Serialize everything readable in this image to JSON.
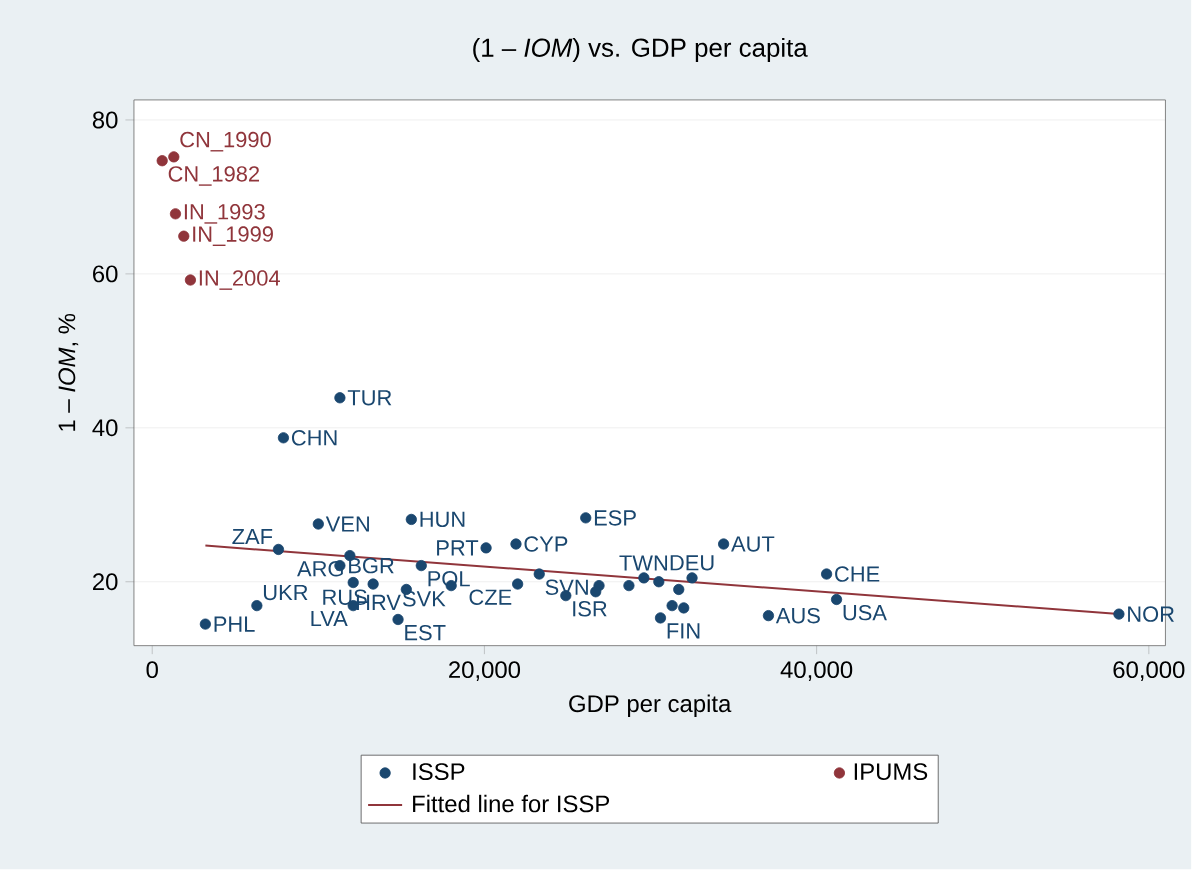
{
  "chart_data": {
    "type": "scatter",
    "title": "(1 – *IOM*) vs. GDP per capita",
    "xlabel": "GDP per capita",
    "ylabel": "1 – *IOM*, %",
    "xlim": [
      -1100,
      61000
    ],
    "ylim": [
      11.7,
      82.6
    ],
    "xticks": [
      0,
      {
        "value": 20000,
        "label": "20,000"
      },
      {
        "value": 40000,
        "label": "40,000"
      },
      {
        "value": 60000,
        "label": "60,000"
      }
    ],
    "yticks": [
      20,
      40,
      60,
      80
    ],
    "grid": "y",
    "legend": "bottom",
    "series": [
      {
        "name": "ISSP",
        "marker": "circle",
        "color": "#1a476f",
        "x": [
          11300,
          7900,
          10000,
          15600,
          7600,
          11900,
          11300,
          16200,
          20100,
          21900,
          26100,
          34400,
          23300,
          22000,
          18000,
          15300,
          13300,
          12100,
          12100,
          14800,
          6300,
          3200,
          24900,
          40600,
          41200,
          58200,
          37100,
          26900,
          26700,
          28700,
          29600,
          30500,
          32500,
          31700,
          31300,
          32000,
          30600
        ],
        "values": [
          43.9,
          38.7,
          27.5,
          28.1,
          24.2,
          23.4,
          22.1,
          22.1,
          24.4,
          24.9,
          28.3,
          24.9,
          21.0,
          19.7,
          19.5,
          19.0,
          19.7,
          19.9,
          16.9,
          15.1,
          16.9,
          14.5,
          18.2,
          21.0,
          17.7,
          15.8,
          15.6,
          19.5,
          18.7,
          19.5,
          20.5,
          20.0,
          20.5,
          19.0,
          16.9,
          16.6,
          15.3
        ]
      },
      {
        "name": "IPUMS",
        "marker": "circle",
        "color": "#90353b",
        "x": [
          600,
          1300,
          1400,
          1900,
          2300
        ],
        "values": [
          74.7,
          75.2,
          67.8,
          64.9,
          59.2
        ]
      },
      {
        "name": "Fitted line for ISSP",
        "type": "line",
        "color": "#90353b",
        "line_style": "solid",
        "marker": "none",
        "x": [
          3200,
          58200
        ],
        "values": [
          24.7,
          15.8
        ]
      }
    ],
    "annotations": [
      {
        "text": "TUR",
        "x": 11300,
        "y": 43.9
      },
      {
        "text": "CHN",
        "x": 7900,
        "y": 38.7
      },
      {
        "text": "VEN",
        "x": 10000,
        "y": 27.5
      },
      {
        "text": "HUN",
        "x": 15600,
        "y": 28.1
      },
      {
        "text": "ZAF",
        "x": 7600,
        "y": 24.2
      },
      {
        "text": "ARG",
        "x": 11900,
        "y": 23.4
      },
      {
        "text": "BGR",
        "x": 11300,
        "y": 22.1
      },
      {
        "text": "POL",
        "x": 16200,
        "y": 22.1
      },
      {
        "text": "PRT",
        "x": 20100,
        "y": 24.4
      },
      {
        "text": "CYP",
        "x": 21900,
        "y": 24.9
      },
      {
        "text": "ESP",
        "x": 26100,
        "y": 28.3
      },
      {
        "text": "AUT",
        "x": 34400,
        "y": 24.9
      },
      {
        "text": "SVN",
        "x": 23300,
        "y": 21.0
      },
      {
        "text": "CZE",
        "x": 22000,
        "y": 19.7
      },
      {
        "text": "SVK",
        "x": 18000,
        "y": 19.5
      },
      {
        "text": "HRV",
        "x": 15300,
        "y": 19.0
      },
      {
        "text": "RUS",
        "x": 13300,
        "y": 19.7
      },
      {
        "text": "LVA",
        "x": 12100,
        "y": 16.9
      },
      {
        "text": "EST",
        "x": 14800,
        "y": 15.1
      },
      {
        "text": "UKR",
        "x": 6300,
        "y": 16.9
      },
      {
        "text": "PHL",
        "x": 3200,
        "y": 14.5
      },
      {
        "text": "ISR",
        "x": 24900,
        "y": 18.2
      },
      {
        "text": "CHE",
        "x": 40600,
        "y": 21.0
      },
      {
        "text": "USA",
        "x": 41200,
        "y": 17.7
      },
      {
        "text": "NOR",
        "x": 58200,
        "y": 15.8
      },
      {
        "text": "AUS",
        "x": 37100,
        "y": 15.6
      },
      {
        "text": "TWN",
        "x": 29600,
        "y": 20.5
      },
      {
        "text": "DEU",
        "x": 32500,
        "y": 20.5
      },
      {
        "text": "FIN",
        "x": 30600,
        "y": 15.3
      },
      {
        "text": "CN_1982",
        "x": 600,
        "y": 74.7
      },
      {
        "text": "CN_1990",
        "x": 1300,
        "y": 75.2
      },
      {
        "text": "IN_1993",
        "x": 1400,
        "y": 67.8
      },
      {
        "text": "IN_1999",
        "x": 1900,
        "y": 64.9
      },
      {
        "text": "IN_2004",
        "x": 2300,
        "y": 59.2
      }
    ]
  }
}
